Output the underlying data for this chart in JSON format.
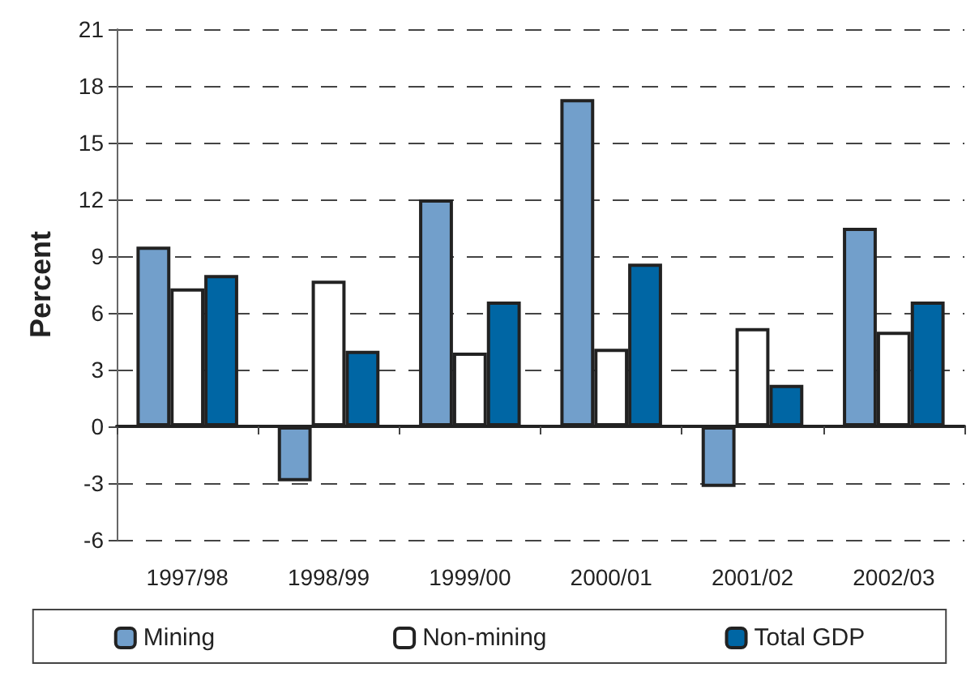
{
  "chart_data": {
    "type": "bar",
    "ylabel": "Percent",
    "categories": [
      "1997/98",
      "1998/99",
      "1999/00",
      "2000/01",
      "2001/02",
      "2002/03"
    ],
    "series": [
      {
        "name": "Mining",
        "color": "#729fcb",
        "values": [
          9.5,
          -2.9,
          12,
          17.3,
          -3.2,
          10.5
        ]
      },
      {
        "name": "Non-mining",
        "color": "#ffffff",
        "values": [
          7.3,
          7.7,
          3.9,
          4.1,
          5.2,
          5.0
        ]
      },
      {
        "name": "Total GDP",
        "color": "#0066a4",
        "values": [
          8.0,
          4.0,
          6.6,
          8.6,
          2.2,
          6.6
        ]
      }
    ],
    "ylim": [
      -6,
      21
    ],
    "yticks": [
      -6,
      -3,
      0,
      3,
      6,
      9,
      12,
      15,
      18,
      21
    ],
    "grid": "y",
    "legend": "bottom"
  }
}
